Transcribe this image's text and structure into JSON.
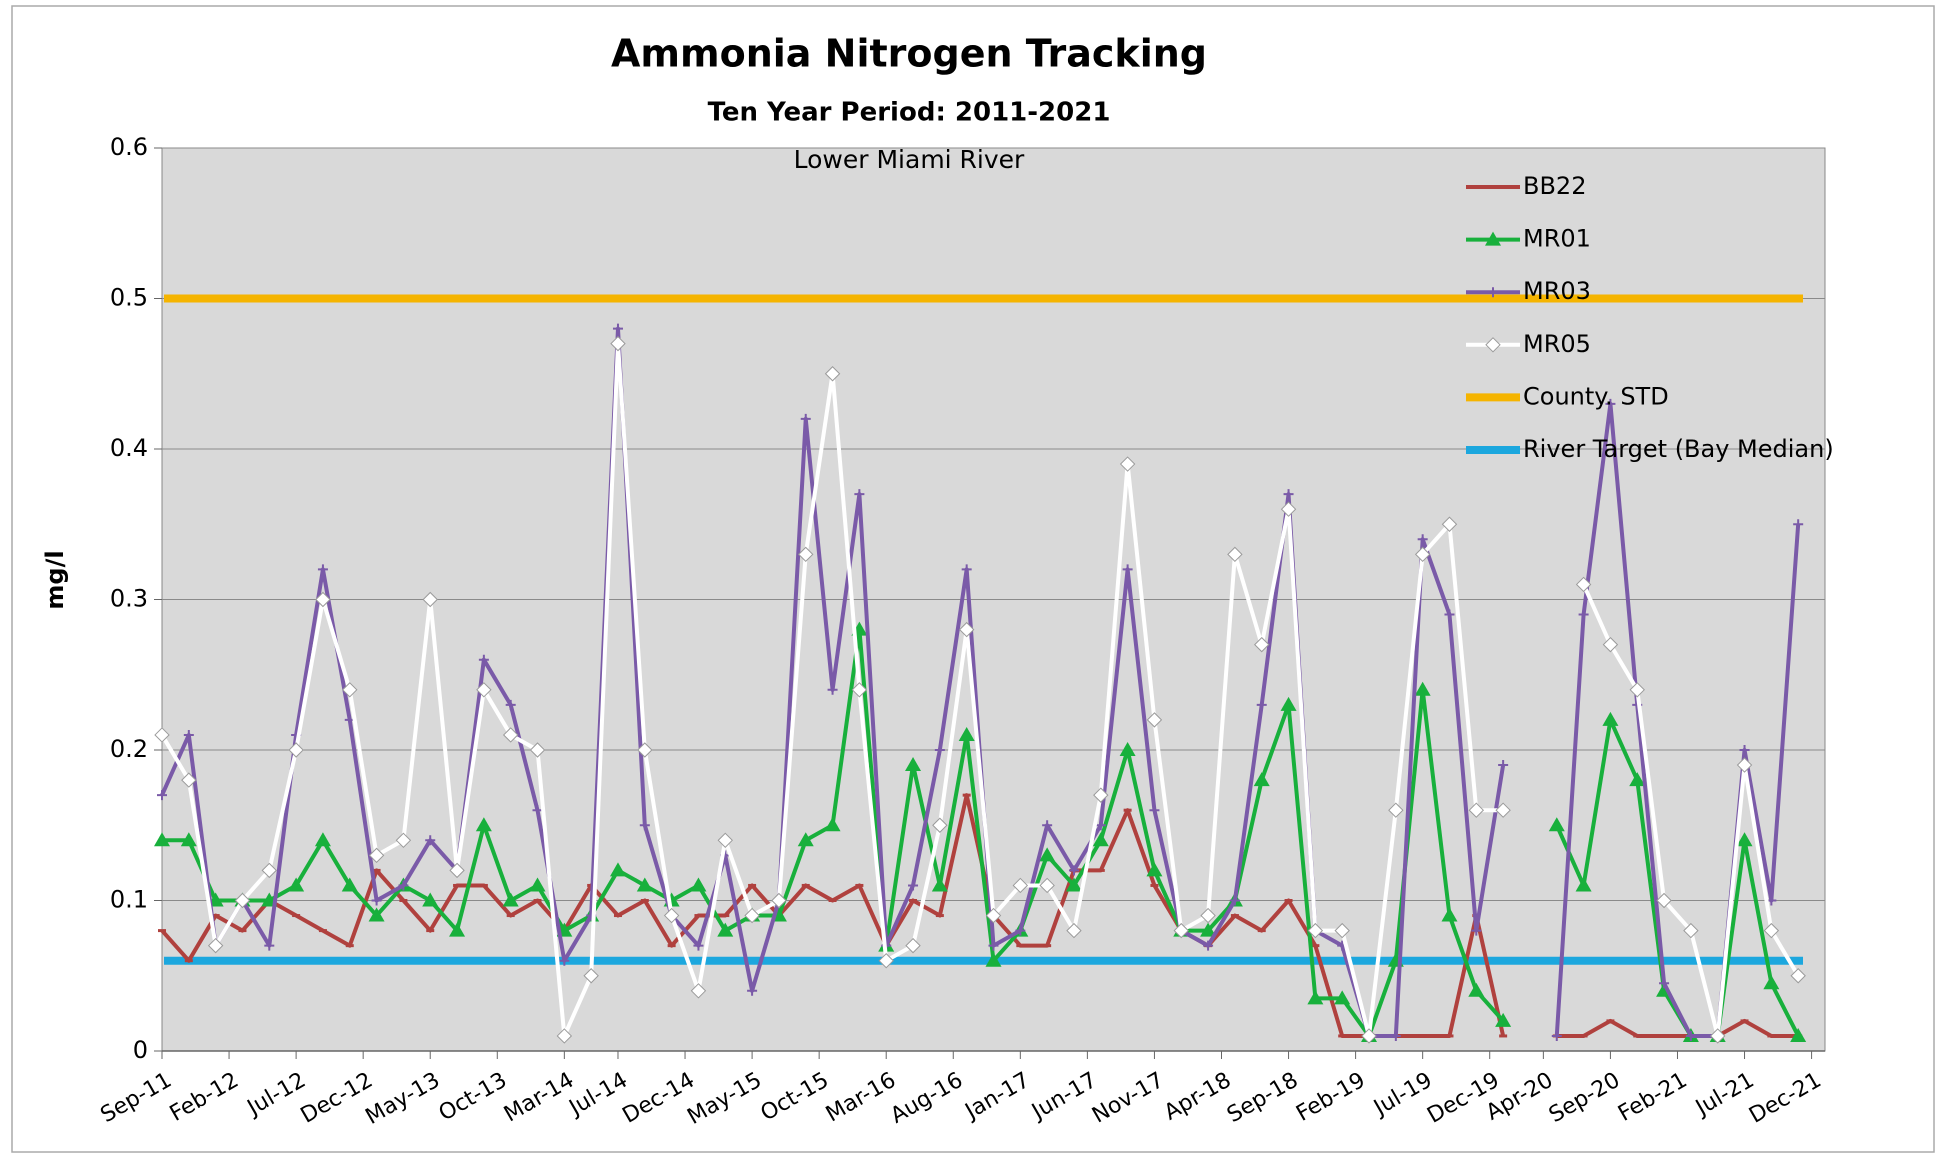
{
  "chart_data": {
    "type": "line",
    "title": "Ammonia Nitrogen Tracking",
    "subtitle": "Ten Year Period:  2011-2021",
    "annotation": "Lower Miami River",
    "y_label": "mg/l",
    "x": [
      "2011-09",
      "2011-11",
      "2012-01",
      "2012-03",
      "2012-05",
      "2012-07",
      "2012-09",
      "2012-11",
      "2013-01",
      "2013-03",
      "2013-05",
      "2013-07",
      "2013-09",
      "2013-11",
      "2014-01",
      "2014-03",
      "2014-05",
      "2014-07",
      "2014-09",
      "2014-11",
      "2015-01",
      "2015-03",
      "2015-05",
      "2015-07",
      "2015-09",
      "2015-11",
      "2016-01",
      "2016-03",
      "2016-05",
      "2016-07",
      "2016-09",
      "2016-11",
      "2017-01",
      "2017-03",
      "2017-05",
      "2017-07",
      "2017-09",
      "2017-11",
      "2018-01",
      "2018-03",
      "2018-05",
      "2018-07",
      "2018-09",
      "2018-11",
      "2019-01",
      "2019-03",
      "2019-05",
      "2019-07",
      "2019-09",
      "2019-11",
      "2020-01",
      "2020-03",
      "2020-05",
      "2020-07",
      "2020-09",
      "2020-11",
      "2021-01",
      "2021-03",
      "2021-05",
      "2021-07",
      "2021-09",
      "2021-11"
    ],
    "series": [
      {
        "name": "BB22",
        "color": "#b0413e",
        "marker": "dash",
        "values": [
          0.08,
          0.06,
          0.09,
          0.08,
          0.1,
          0.09,
          0.08,
          0.07,
          0.12,
          0.1,
          0.08,
          0.11,
          0.11,
          0.09,
          0.1,
          0.08,
          0.11,
          0.09,
          0.1,
          0.07,
          0.09,
          0.09,
          0.11,
          0.09,
          0.11,
          0.1,
          0.11,
          0.07,
          0.1,
          0.09,
          0.17,
          0.09,
          0.07,
          0.07,
          0.12,
          0.12,
          0.16,
          0.11,
          0.08,
          0.07,
          0.09,
          0.08,
          0.1,
          0.07,
          0.01,
          0.01,
          0.01,
          0.01,
          0.01,
          0.09,
          0.01,
          null,
          0.01,
          0.01,
          0.02,
          0.01,
          0.01,
          0.01,
          0.01,
          0.02,
          0.01,
          0.01
        ]
      },
      {
        "name": "MR01",
        "color": "#18b03c",
        "marker": "triangle",
        "values": [
          0.14,
          0.14,
          0.1,
          0.1,
          0.1,
          0.11,
          0.14,
          0.11,
          0.09,
          0.11,
          0.1,
          0.08,
          0.15,
          0.1,
          0.11,
          0.08,
          0.09,
          0.12,
          0.11,
          0.1,
          0.11,
          0.08,
          0.09,
          0.09,
          0.14,
          0.15,
          0.28,
          0.07,
          0.19,
          0.11,
          0.21,
          0.06,
          0.08,
          0.13,
          0.11,
          0.14,
          0.2,
          0.12,
          0.08,
          0.08,
          0.1,
          0.18,
          0.23,
          0.035,
          0.035,
          0.01,
          0.06,
          0.24,
          0.09,
          0.04,
          0.02,
          null,
          0.15,
          0.11,
          0.22,
          0.18,
          0.04,
          0.01,
          0.01,
          0.14,
          0.045,
          0.01
        ]
      },
      {
        "name": "MR03",
        "color": "#7a5aa8",
        "marker": "plus",
        "values": [
          0.17,
          0.21,
          0.07,
          0.1,
          0.07,
          0.21,
          0.32,
          0.22,
          0.1,
          0.11,
          0.14,
          0.12,
          0.26,
          0.23,
          0.16,
          0.06,
          0.09,
          0.48,
          0.15,
          0.09,
          0.07,
          0.13,
          0.04,
          0.1,
          0.42,
          0.24,
          0.37,
          0.07,
          0.11,
          0.2,
          0.32,
          0.07,
          0.08,
          0.15,
          0.12,
          0.15,
          0.32,
          0.16,
          0.08,
          0.07,
          0.1,
          0.23,
          0.37,
          0.08,
          0.07,
          0.01,
          0.01,
          0.34,
          0.29,
          0.08,
          0.19,
          null,
          0.01,
          0.29,
          0.43,
          0.23,
          0.045,
          0.01,
          0.01,
          0.2,
          0.1,
          0.35
        ]
      },
      {
        "name": "MR05",
        "color": "#ffffff",
        "marker": "diamond",
        "values": [
          0.21,
          0.18,
          0.07,
          0.1,
          0.12,
          0.2,
          0.3,
          0.24,
          0.13,
          0.14,
          0.3,
          0.12,
          0.24,
          0.21,
          0.2,
          0.01,
          0.05,
          0.47,
          0.2,
          0.09,
          0.04,
          0.14,
          0.09,
          0.1,
          0.33,
          0.45,
          0.24,
          0.06,
          0.07,
          0.15,
          0.28,
          0.09,
          0.11,
          0.11,
          0.08,
          0.17,
          0.39,
          0.22,
          0.08,
          0.09,
          0.33,
          0.27,
          0.36,
          0.08,
          0.08,
          0.01,
          0.16,
          0.33,
          0.35,
          0.16,
          0.16,
          null,
          null,
          0.31,
          0.27,
          0.24,
          0.1,
          0.08,
          0.01,
          0.19,
          0.08,
          0.05
        ]
      }
    ],
    "reference_lines": [
      {
        "name": "County. STD",
        "color": "#f5b400",
        "value": 0.5
      },
      {
        "name": "River Target (Bay Median)",
        "color": "#1ca7de",
        "value": 0.06
      }
    ],
    "xlim": [
      "2011-09",
      "2022-01"
    ],
    "xticks": [
      {
        "value": "2011-09",
        "label": "Sep-11"
      },
      {
        "value": "2012-02",
        "label": "Feb-12"
      },
      {
        "value": "2012-07",
        "label": "Jul-12"
      },
      {
        "value": "2012-12",
        "label": "Dec-12"
      },
      {
        "value": "2013-05",
        "label": "May-13"
      },
      {
        "value": "2013-10",
        "label": "Oct-13"
      },
      {
        "value": "2014-03",
        "label": "Mar-14"
      },
      {
        "value": "2014-07",
        "label": "Jul-14"
      },
      {
        "value": "2014-12",
        "label": "Dec-14"
      },
      {
        "value": "2015-05",
        "label": "May-15"
      },
      {
        "value": "2015-10",
        "label": "Oct-15"
      },
      {
        "value": "2016-03",
        "label": "Mar-16"
      },
      {
        "value": "2016-08",
        "label": "Aug-16"
      },
      {
        "value": "2017-01",
        "label": "Jan-17"
      },
      {
        "value": "2017-06",
        "label": "Jun-17"
      },
      {
        "value": "2017-11",
        "label": "Nov-17"
      },
      {
        "value": "2018-04",
        "label": "Apr-18"
      },
      {
        "value": "2018-09",
        "label": "Sep-18"
      },
      {
        "value": "2019-02",
        "label": "Feb-19"
      },
      {
        "value": "2019-07",
        "label": "Jul-19"
      },
      {
        "value": "2019-12",
        "label": "Dec-19"
      },
      {
        "value": "2020-04",
        "label": "Apr-20"
      },
      {
        "value": "2020-09",
        "label": "Sep-20"
      },
      {
        "value": "2021-02",
        "label": "Feb-21"
      },
      {
        "value": "2021-07",
        "label": "Jul-21"
      },
      {
        "value": "2021-12",
        "label": "Dec-21"
      }
    ],
    "ylim": [
      0,
      0.6
    ],
    "yticks": [
      0,
      0.1,
      0.2,
      0.3,
      0.4,
      0.5,
      0.6
    ],
    "grid": true,
    "plot_background": "#d9d9d9",
    "legend": "upper right"
  }
}
